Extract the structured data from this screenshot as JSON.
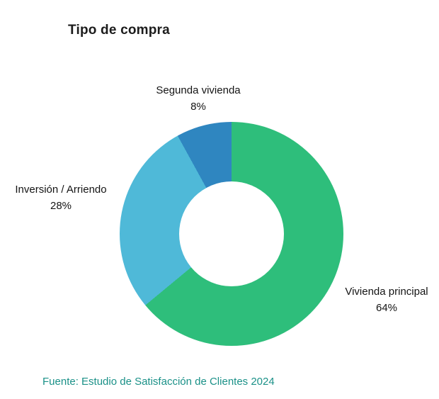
{
  "title": "Tipo de compra",
  "source": "Fuente: Estudio de Satisfacción de Clientes 2024",
  "chart_data": {
    "type": "pie",
    "subtype": "donut",
    "title": "Tipo de compra",
    "unit": "%",
    "start_angle_deg": 0,
    "direction": "clockwise",
    "legend_position": "none",
    "categories": [
      "Vivienda principal",
      "Inversión / Arriendo",
      "Segunda vivienda"
    ],
    "values": [
      64,
      28,
      8
    ],
    "slices": [
      {
        "label": "Vivienda principal",
        "pct": 64,
        "pct_label": "64%",
        "color": "#2EBE7B"
      },
      {
        "label": "Inversión / Arriendo",
        "pct": 28,
        "pct_label": "28%",
        "color": "#4FB9D8"
      },
      {
        "label": "Segunda vivienda",
        "pct": 8,
        "pct_label": "8%",
        "color": "#2F86C0"
      }
    ],
    "annotation": "Fuente: Estudio de Satisfacción de Clientes 2024"
  }
}
